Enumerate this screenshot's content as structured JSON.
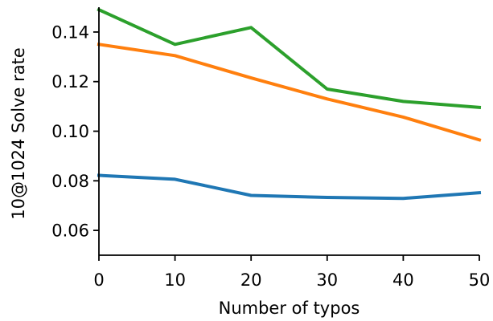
{
  "chart_data": {
    "type": "line",
    "title": "",
    "xlabel": "Number of typos",
    "ylabel": "10@1024 Solve rate",
    "x": [
      0,
      10,
      20,
      30,
      40,
      50
    ],
    "xlim": [
      0,
      50
    ],
    "ylim": [
      0.05,
      0.15
    ],
    "xticks": [
      0,
      10,
      20,
      30,
      40,
      50
    ],
    "yticks": [
      0.06,
      0.08,
      0.1,
      0.12,
      0.14
    ],
    "xtick_labels": [
      "0",
      "10",
      "20",
      "30",
      "40",
      "50"
    ],
    "ytick_labels": [
      "0.06",
      "0.08",
      "0.10",
      "0.12",
      "0.14"
    ],
    "grid": false,
    "legend": "none",
    "series": [
      {
        "color": "#1f77b4",
        "values": [
          0.0822,
          0.0806,
          0.0741,
          0.0733,
          0.0729,
          0.0752
        ]
      },
      {
        "color": "#ff7f0e",
        "values": [
          0.135,
          0.1305,
          0.1215,
          0.113,
          0.1057,
          0.0965
        ]
      },
      {
        "color": "#2ca02c",
        "values": [
          0.149,
          0.135,
          0.1418,
          0.117,
          0.112,
          0.1096
        ]
      }
    ]
  }
}
